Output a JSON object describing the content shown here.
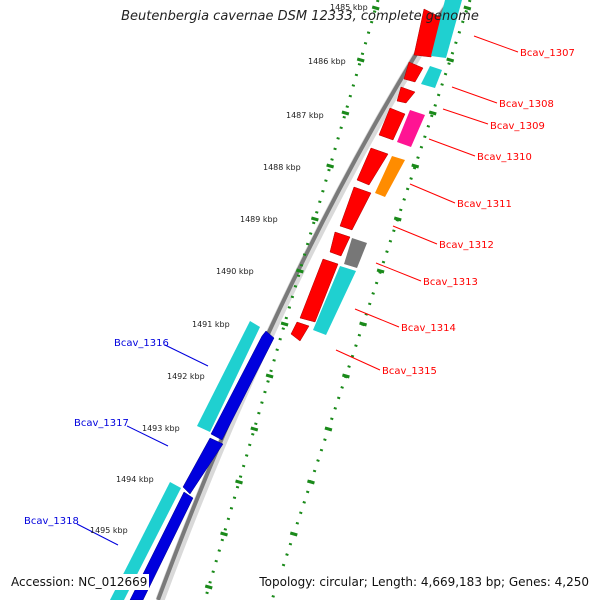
{
  "title": "Beutenbergia cavernae DSM 12333, complete genome",
  "footer": {
    "accession": "Accession: NC_012669",
    "summary": "Topology: circular; Length: 4,669,183 bp; Genes: 4,250"
  },
  "kbp_labels": [
    "1485 kbp",
    "1486 kbp",
    "1487 kbp",
    "1488 kbp",
    "1489 kbp",
    "1490 kbp",
    "1491 kbp",
    "1492 kbp",
    "1493 kbp",
    "1494 kbp",
    "1495 kbp"
  ],
  "genes_forward": [
    {
      "label": "Bcav_1307",
      "color": "#ff0000"
    },
    {
      "label": "Bcav_1308",
      "color": "#ff0000"
    },
    {
      "label": "Bcav_1309",
      "color": "#ff0000"
    },
    {
      "label": "Bcav_1310",
      "color": "#ff0000"
    },
    {
      "label": "Bcav_1311",
      "color": "#ff0000"
    },
    {
      "label": "Bcav_1312",
      "color": "#ff0000"
    },
    {
      "label": "Bcav_1313",
      "color": "#ff0000"
    },
    {
      "label": "Bcav_1314",
      "color": "#ff0000"
    },
    {
      "label": "Bcav_1315",
      "color": "#ff0000"
    }
  ],
  "genes_reverse": [
    {
      "label": "Bcav_1316",
      "color": "#0000dd"
    },
    {
      "label": "Bcav_1317",
      "color": "#0000dd"
    },
    {
      "label": "Bcav_1318",
      "color": "#0000dd"
    }
  ],
  "colors": {
    "forward_gene": "#ff0000",
    "reverse_gene": "#0000dd",
    "cog_cyan": "#1fd0d0",
    "cog_magenta": "#ff1493",
    "cog_orange": "#ff8c00",
    "cog_gray": "#777777",
    "scale_ticks": "#1a8a1a",
    "backbone": "#888888"
  }
}
